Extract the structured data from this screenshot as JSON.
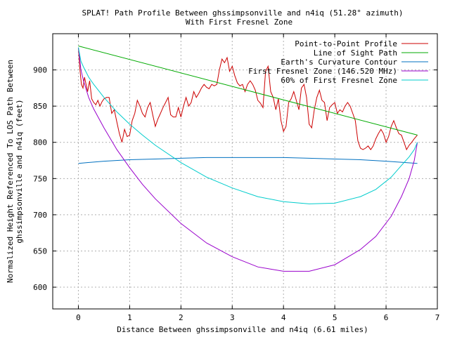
{
  "chart_data": {
    "type": "line",
    "title": "SPLAT! Path Profile Between ghssimpsonville and n4iq (51.28° azimuth)",
    "subtitle": "With First Fresnel Zone",
    "xlabel": "Distance Between ghssimpsonville and n4iq (6.61 miles)",
    "ylabel_line1": "Normalized Height Referenced To LOS Path Between",
    "ylabel_line2": "ghssimpsonville and n4iq (feet)",
    "xlim": [
      -0.5,
      7
    ],
    "ylim": [
      570,
      950
    ],
    "xticks": [
      0,
      1,
      2,
      3,
      4,
      5,
      6,
      7
    ],
    "yticks": [
      600,
      650,
      700,
      750,
      800,
      850,
      900
    ],
    "grid": true,
    "legend_position": "top-right",
    "series": [
      {
        "name": "Point-to-Point Profile",
        "color": "#cc0000",
        "x": [
          0,
          0.03,
          0.06,
          0.09,
          0.12,
          0.15,
          0.18,
          0.22,
          0.26,
          0.3,
          0.34,
          0.38,
          0.42,
          0.46,
          0.5,
          0.55,
          0.6,
          0.65,
          0.7,
          0.75,
          0.8,
          0.85,
          0.9,
          0.95,
          1.0,
          1.05,
          1.1,
          1.15,
          1.2,
          1.25,
          1.3,
          1.35,
          1.4,
          1.45,
          1.5,
          1.55,
          1.6,
          1.65,
          1.7,
          1.75,
          1.8,
          1.85,
          1.9,
          1.95,
          2.0,
          2.05,
          2.1,
          2.15,
          2.2,
          2.25,
          2.3,
          2.35,
          2.4,
          2.45,
          2.5,
          2.55,
          2.6,
          2.65,
          2.7,
          2.75,
          2.8,
          2.85,
          2.9,
          2.95,
          3.0,
          3.05,
          3.1,
          3.15,
          3.2,
          3.25,
          3.3,
          3.35,
          3.4,
          3.45,
          3.5,
          3.55,
          3.6,
          3.65,
          3.7,
          3.75,
          3.8,
          3.85,
          3.9,
          3.95,
          4.0,
          4.05,
          4.1,
          4.15,
          4.2,
          4.25,
          4.3,
          4.35,
          4.4,
          4.45,
          4.5,
          4.55,
          4.6,
          4.65,
          4.7,
          4.75,
          4.8,
          4.85,
          4.9,
          4.95,
          5.0,
          5.05,
          5.1,
          5.15,
          5.2,
          5.25,
          5.3,
          5.35,
          5.4,
          5.45,
          5.5,
          5.55,
          5.6,
          5.65,
          5.7,
          5.75,
          5.8,
          5.85,
          5.9,
          5.95,
          6.0,
          6.05,
          6.1,
          6.15,
          6.2,
          6.25,
          6.3,
          6.35,
          6.4,
          6.45,
          6.5,
          6.55,
          6.61
        ],
        "y": [
          931,
          900,
          880,
          875,
          890,
          880,
          870,
          885,
          860,
          855,
          852,
          858,
          850,
          856,
          860,
          862,
          862,
          840,
          845,
          828,
          812,
          800,
          818,
          808,
          810,
          830,
          840,
          858,
          850,
          840,
          835,
          848,
          855,
          838,
          822,
          832,
          840,
          848,
          855,
          862,
          838,
          835,
          835,
          848,
          835,
          850,
          862,
          850,
          855,
          870,
          862,
          868,
          875,
          880,
          876,
          874,
          880,
          878,
          880,
          900,
          915,
          910,
          917,
          898,
          905,
          892,
          882,
          878,
          880,
          870,
          880,
          885,
          880,
          872,
          858,
          854,
          848,
          898,
          905,
          870,
          862,
          845,
          860,
          830,
          815,
          822,
          855,
          860,
          870,
          858,
          845,
          875,
          880,
          862,
          825,
          820,
          845,
          862,
          872,
          858,
          855,
          830,
          848,
          852,
          855,
          840,
          845,
          842,
          850,
          855,
          850,
          840,
          830,
          802,
          792,
          790,
          792,
          795,
          790,
          795,
          805,
          812,
          818,
          812,
          800,
          808,
          822,
          830,
          820,
          812,
          810,
          800,
          790,
          796,
          800,
          805,
          810
        ]
      },
      {
        "name": "Line of Sight Path",
        "color": "#00aa00",
        "x": [
          0,
          6.61
        ],
        "y": [
          933,
          810
        ]
      },
      {
        "name": "Earth's Curvature Contour",
        "color": "#0070c0",
        "x": [
          0,
          0.5,
          1,
          1.5,
          2,
          2.5,
          3,
          3.5,
          4,
          4.5,
          5,
          5.5,
          6,
          6.61
        ],
        "y": [
          771,
          774,
          776,
          777,
          778,
          779,
          779,
          779,
          779,
          778,
          777,
          776,
          774,
          771
        ]
      },
      {
        "name": "First Fresnel Zone (146.520 MHz)",
        "color": "#9900cc",
        "x": [
          0,
          0.05,
          0.1,
          0.2,
          0.3,
          0.5,
          0.75,
          1,
          1.25,
          1.5,
          2,
          2.5,
          3,
          3.5,
          4,
          4.5,
          5,
          5.5,
          5.8,
          6.1,
          6.3,
          6.45,
          6.55,
          6.61
        ],
        "y": [
          931,
          900,
          885,
          862,
          846,
          820,
          790,
          765,
          742,
          722,
          688,
          661,
          642,
          628,
          622,
          622,
          631,
          652,
          670,
          698,
          725,
          750,
          775,
          800
        ]
      },
      {
        "name": "60% of First Fresnel Zone",
        "color": "#00cccc",
        "x": [
          0,
          0.05,
          0.1,
          0.2,
          0.3,
          0.5,
          0.75,
          1,
          1.25,
          1.5,
          2,
          2.5,
          3,
          3.5,
          4,
          4.5,
          5,
          5.5,
          5.8,
          6.1,
          6.3,
          6.45,
          6.55,
          6.61
        ],
        "y": [
          931,
          912,
          904,
          890,
          880,
          862,
          842,
          825,
          810,
          796,
          772,
          752,
          737,
          725,
          718,
          715,
          716,
          725,
          735,
          752,
          768,
          780,
          790,
          800
        ]
      }
    ]
  }
}
